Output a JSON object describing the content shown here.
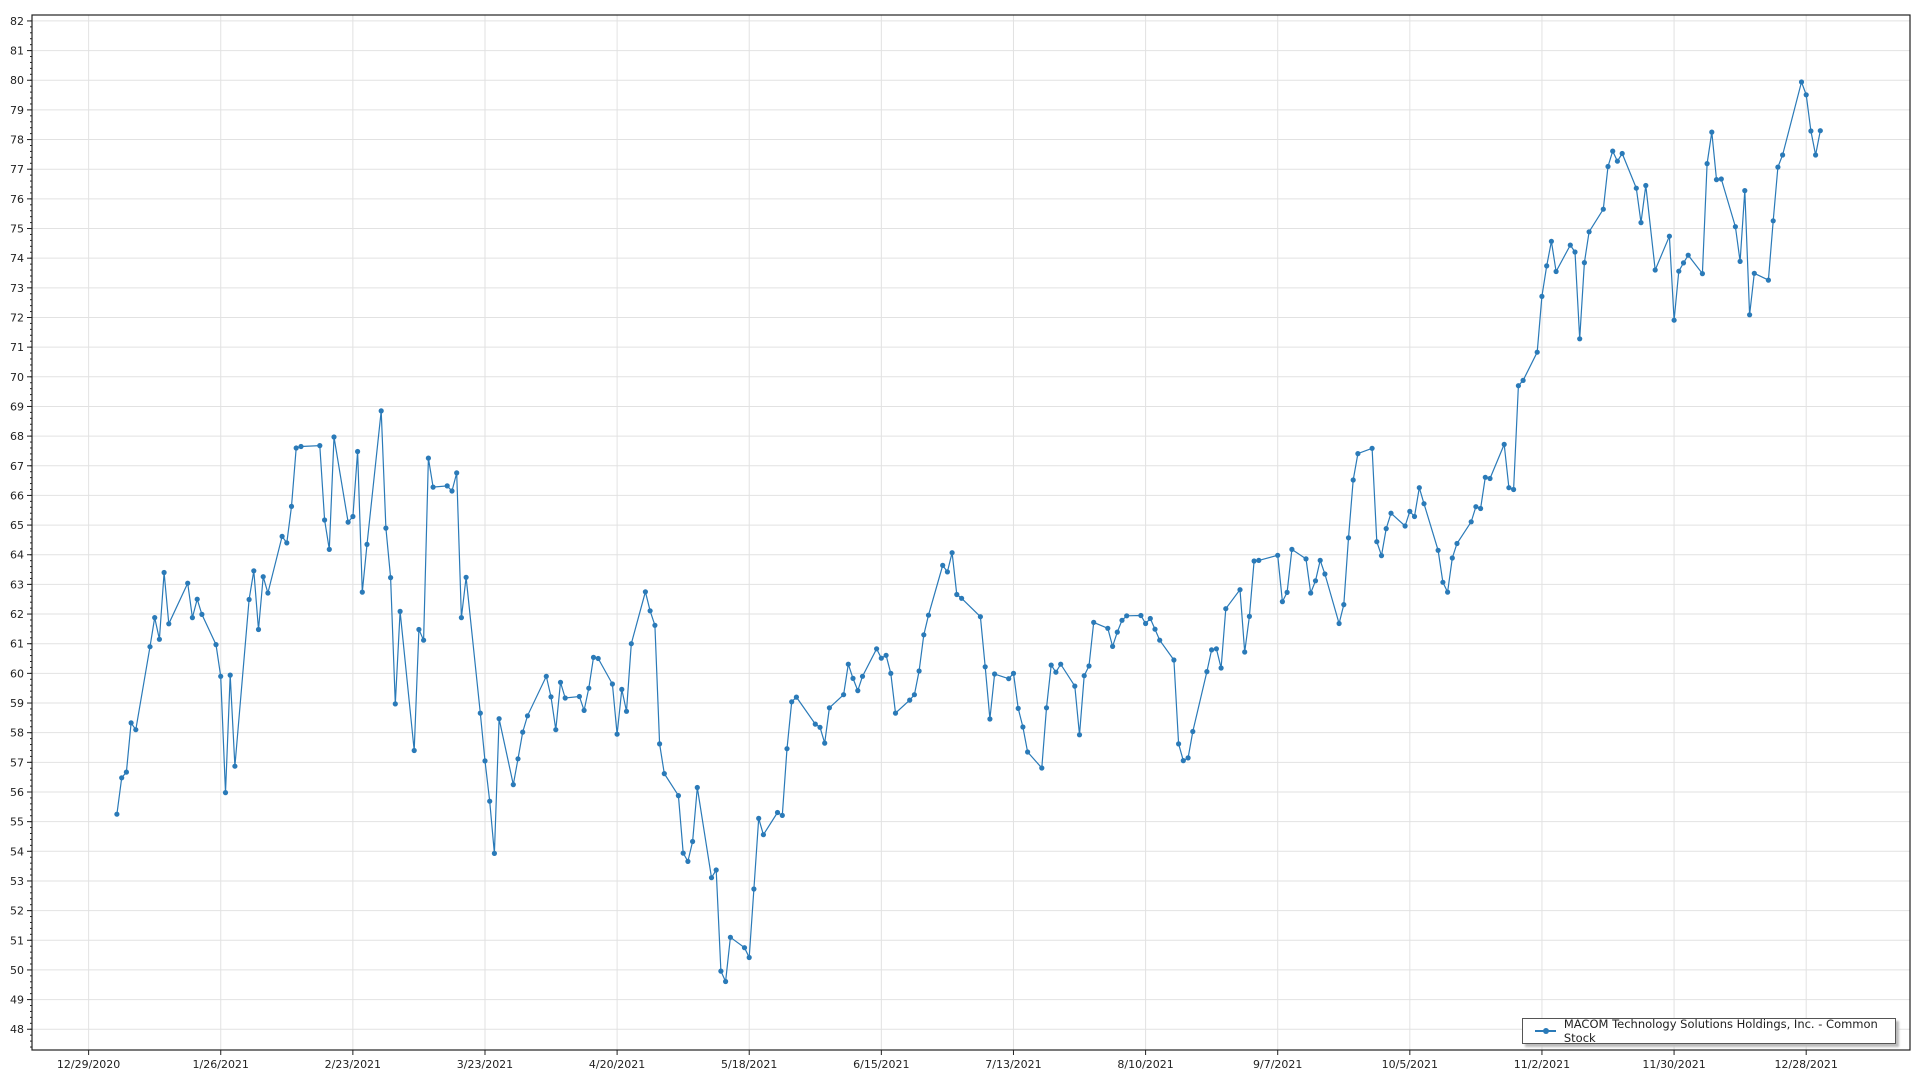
{
  "chart_data": {
    "type": "line",
    "title": "",
    "xlabel": "",
    "ylabel": "",
    "ylim": [
      47.3,
      82.2
    ],
    "xlim": [
      "12/17/2020",
      "1/19/2022"
    ],
    "grid": true,
    "legend_placement": "bottom-right",
    "line_color": "#2a7ab8",
    "markers": true,
    "y_ticks": [
      "48",
      "49",
      "50",
      "51",
      "52",
      "53",
      "54",
      "55",
      "56",
      "57",
      "58",
      "59",
      "60",
      "61",
      "62",
      "63",
      "64",
      "65",
      "66",
      "67",
      "68",
      "69",
      "70",
      "71",
      "72",
      "73",
      "74",
      "75",
      "76",
      "77",
      "78",
      "79",
      "80",
      "81",
      "82"
    ],
    "x_ticks": [
      "12/29/2020",
      "1/26/2021",
      "2/23/2021",
      "3/23/2021",
      "4/20/2021",
      "5/18/2021",
      "6/15/2021",
      "7/13/2021",
      "8/10/2021",
      "9/7/2021",
      "10/5/2021",
      "11/2/2021",
      "11/30/2021",
      "12/28/2021"
    ],
    "series": [
      {
        "name": "MACOM Technology Solutions Holdings, Inc. - Common Stock",
        "x": [
          "1/4/2021",
          "1/5/2021",
          "1/6/2021",
          "1/7/2021",
          "1/8/2021",
          "1/11/2021",
          "1/12/2021",
          "1/13/2021",
          "1/14/2021",
          "1/15/2021",
          "1/19/2021",
          "1/20/2021",
          "1/21/2021",
          "1/22/2021",
          "1/25/2021",
          "1/26/2021",
          "1/27/2021",
          "1/28/2021",
          "1/29/2021",
          "2/1/2021",
          "2/2/2021",
          "2/3/2021",
          "2/4/2021",
          "2/5/2021",
          "2/8/2021",
          "2/9/2021",
          "2/10/2021",
          "2/11/2021",
          "2/12/2021",
          "2/16/2021",
          "2/17/2021",
          "2/18/2021",
          "2/19/2021",
          "2/22/2021",
          "2/23/2021",
          "2/24/2021",
          "2/25/2021",
          "2/26/2021",
          "3/1/2021",
          "3/2/2021",
          "3/3/2021",
          "3/4/2021",
          "3/5/2021",
          "3/8/2021",
          "3/9/2021",
          "3/10/2021",
          "3/11/2021",
          "3/12/2021",
          "3/15/2021",
          "3/16/2021",
          "3/17/2021",
          "3/18/2021",
          "3/19/2021",
          "3/22/2021",
          "3/23/2021",
          "3/24/2021",
          "3/25/2021",
          "3/26/2021",
          "3/29/2021",
          "3/30/2021",
          "3/31/2021",
          "4/1/2021",
          "4/5/2021",
          "4/6/2021",
          "4/7/2021",
          "4/8/2021",
          "4/9/2021",
          "4/12/2021",
          "4/13/2021",
          "4/14/2021",
          "4/15/2021",
          "4/16/2021",
          "4/19/2021",
          "4/20/2021",
          "4/21/2021",
          "4/22/2021",
          "4/23/2021",
          "4/26/2021",
          "4/27/2021",
          "4/28/2021",
          "4/29/2021",
          "4/30/2021",
          "5/3/2021",
          "5/4/2021",
          "5/5/2021",
          "5/6/2021",
          "5/7/2021",
          "5/10/2021",
          "5/11/2021",
          "5/12/2021",
          "5/13/2021",
          "5/14/2021",
          "5/17/2021",
          "5/18/2021",
          "5/19/2021",
          "5/20/2021",
          "5/21/2021",
          "5/24/2021",
          "5/25/2021",
          "5/26/2021",
          "5/27/2021",
          "5/28/2021",
          "6/1/2021",
          "6/2/2021",
          "6/3/2021",
          "6/4/2021",
          "6/7/2021",
          "6/8/2021",
          "6/9/2021",
          "6/10/2021",
          "6/11/2021",
          "6/14/2021",
          "6/15/2021",
          "6/16/2021",
          "6/17/2021",
          "6/18/2021",
          "6/21/2021",
          "6/22/2021",
          "6/23/2021",
          "6/24/2021",
          "6/25/2021",
          "6/28/2021",
          "6/29/2021",
          "6/30/2021",
          "7/1/2021",
          "7/2/2021",
          "7/6/2021",
          "7/7/2021",
          "7/8/2021",
          "7/9/2021",
          "7/12/2021",
          "7/13/2021",
          "7/14/2021",
          "7/15/2021",
          "7/16/2021",
          "7/19/2021",
          "7/20/2021",
          "7/21/2021",
          "7/22/2021",
          "7/23/2021",
          "7/26/2021",
          "7/27/2021",
          "7/28/2021",
          "7/29/2021",
          "7/30/2021",
          "8/2/2021",
          "8/3/2021",
          "8/4/2021",
          "8/5/2021",
          "8/6/2021",
          "8/9/2021",
          "8/10/2021",
          "8/11/2021",
          "8/12/2021",
          "8/13/2021",
          "8/16/2021",
          "8/17/2021",
          "8/18/2021",
          "8/19/2021",
          "8/20/2021",
          "8/23/2021",
          "8/24/2021",
          "8/25/2021",
          "8/26/2021",
          "8/27/2021",
          "8/30/2021",
          "8/31/2021",
          "9/1/2021",
          "9/2/2021",
          "9/3/2021",
          "9/7/2021",
          "9/8/2021",
          "9/9/2021",
          "9/10/2021",
          "9/13/2021",
          "9/14/2021",
          "9/15/2021",
          "9/16/2021",
          "9/17/2021",
          "9/20/2021",
          "9/21/2021",
          "9/22/2021",
          "9/23/2021",
          "9/24/2021",
          "9/27/2021",
          "9/28/2021",
          "9/29/2021",
          "9/30/2021",
          "10/1/2021",
          "10/4/2021",
          "10/5/2021",
          "10/6/2021",
          "10/7/2021",
          "10/8/2021",
          "10/11/2021",
          "10/12/2021",
          "10/13/2021",
          "10/14/2021",
          "10/15/2021",
          "10/18/2021",
          "10/19/2021",
          "10/20/2021",
          "10/21/2021",
          "10/22/2021",
          "10/25/2021",
          "10/26/2021",
          "10/27/2021",
          "10/28/2021",
          "10/29/2021",
          "11/1/2021",
          "11/2/2021",
          "11/3/2021",
          "11/4/2021",
          "11/5/2021",
          "11/8/2021",
          "11/9/2021",
          "11/10/2021",
          "11/11/2021",
          "11/12/2021",
          "11/15/2021",
          "11/16/2021",
          "11/17/2021",
          "11/18/2021",
          "11/19/2021",
          "11/22/2021",
          "11/23/2021",
          "11/24/2021",
          "11/26/2021",
          "11/29/2021",
          "11/30/2021",
          "12/1/2021",
          "12/2/2021",
          "12/3/2021",
          "12/6/2021",
          "12/7/2021",
          "12/8/2021",
          "12/9/2021",
          "12/10/2021",
          "12/13/2021",
          "12/14/2021",
          "12/15/2021",
          "12/16/2021",
          "12/17/2021",
          "12/20/2021",
          "12/21/2021",
          "12/22/2021",
          "12/23/2021",
          "12/27/2021",
          "12/28/2021",
          "12/29/2021",
          "12/30/2021",
          "12/31/2021"
        ],
        "y": [
          55.25,
          56.48,
          56.67,
          58.33,
          58.1,
          60.9,
          61.88,
          61.15,
          63.4,
          61.67,
          63.04,
          61.88,
          62.5,
          61.99,
          60.97,
          59.9,
          55.98,
          59.94,
          56.87,
          62.49,
          63.46,
          61.48,
          63.26,
          62.71,
          64.62,
          64.4,
          65.63,
          67.6,
          67.65,
          67.68,
          65.17,
          64.18,
          67.97,
          65.1,
          65.29,
          67.48,
          62.74,
          64.35,
          68.85,
          64.9,
          63.23,
          58.97,
          62.09,
          57.4,
          61.48,
          61.12,
          67.26,
          66.28,
          66.32,
          66.15,
          66.76,
          61.88,
          63.24,
          58.66,
          57.05,
          55.69,
          53.93,
          58.47,
          56.25,
          57.12,
          58.02,
          58.57,
          59.9,
          59.21,
          58.1,
          59.7,
          59.17,
          59.22,
          58.75,
          59.5,
          60.54,
          60.5,
          59.64,
          57.95,
          59.46,
          58.72,
          61.0,
          62.75,
          62.11,
          61.62,
          57.62,
          56.62,
          55.88,
          53.94,
          53.66,
          54.33,
          56.15,
          53.11,
          53.37,
          49.96,
          49.61,
          51.1,
          50.75,
          50.42,
          52.73,
          55.11,
          54.56,
          55.31,
          55.21,
          57.46,
          59.04,
          59.2,
          58.29,
          58.18,
          57.65,
          58.84,
          59.28,
          60.31,
          59.83,
          59.42,
          59.9,
          60.83,
          60.51,
          60.61,
          60.0,
          58.66,
          59.1,
          59.28,
          60.08,
          61.3,
          61.96,
          63.64,
          63.42,
          64.07,
          62.66,
          62.53,
          61.91,
          60.22,
          58.46,
          59.98,
          59.82,
          60.0,
          58.82,
          58.19,
          57.35,
          56.81,
          58.84,
          60.28,
          60.04,
          60.31,
          59.57,
          57.93,
          59.92,
          60.25,
          61.72,
          61.52,
          60.91,
          61.39,
          61.79,
          61.94,
          61.95,
          61.68,
          61.85,
          61.49,
          61.12,
          60.45,
          57.62,
          57.06,
          57.15,
          58.04,
          60.06,
          60.79,
          60.83,
          60.18,
          62.18,
          62.82,
          60.72,
          61.92,
          63.79,
          63.81,
          63.98,
          62.42,
          62.73,
          64.18,
          63.86,
          62.71,
          63.12,
          63.81,
          63.35,
          61.68,
          62.32,
          64.57,
          66.52,
          67.41,
          67.59,
          64.44,
          63.97,
          64.88,
          65.4,
          64.97,
          65.46,
          65.29,
          66.26,
          65.72,
          64.15,
          63.07,
          62.74,
          63.89,
          64.38,
          65.11,
          65.62,
          65.56,
          66.61,
          66.57,
          67.72,
          66.26,
          66.2,
          69.7,
          69.88,
          70.83,
          72.71,
          73.74,
          74.57,
          73.55,
          74.44,
          74.21,
          71.28,
          73.85,
          74.89,
          75.65,
          77.09,
          77.61,
          77.27,
          77.53,
          76.36,
          75.2,
          76.45,
          73.6,
          74.74,
          71.91,
          73.56,
          73.84,
          74.1,
          73.48,
          77.19,
          78.25,
          76.65,
          76.67,
          75.06,
          73.89,
          76.28,
          72.09,
          73.49,
          73.26,
          75.26,
          77.07,
          77.48,
          79.94,
          79.51,
          78.29,
          77.48,
          78.3
        ]
      }
    ]
  }
}
